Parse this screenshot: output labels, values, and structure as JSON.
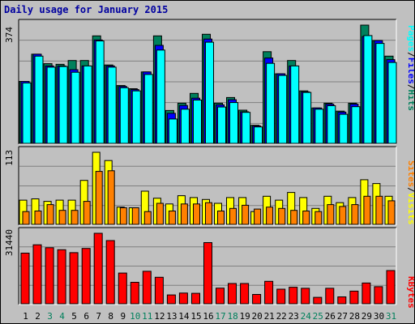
{
  "title": "Daily usage for January 2015",
  "colors": {
    "hits": "#00805c",
    "files": "#0000ff",
    "pages": "#00ffff",
    "visits": "#ffff00",
    "sites": "#ff8000",
    "kbytes": "#ff0000",
    "weekday": "#000000",
    "weekend": "#00805c",
    "panel_bg": "#c0c0c0",
    "grid": "#808080"
  },
  "side_labels": {
    "panel1": [
      "Pages",
      "/",
      "Files",
      "/",
      "Hits"
    ],
    "panel2": [
      "Sites",
      "/",
      "Visits"
    ],
    "panel3": [
      "KBytes"
    ]
  },
  "chart_data": [
    {
      "type": "bar",
      "panel": "hits-files-pages",
      "categories": [
        "1",
        "2",
        "3",
        "4",
        "5",
        "6",
        "7",
        "8",
        "9",
        "10",
        "11",
        "12",
        "13",
        "14",
        "15",
        "16",
        "17",
        "18",
        "19",
        "20",
        "21",
        "22",
        "23",
        "24",
        "25",
        "26",
        "27",
        "28",
        "29",
        "30",
        "31"
      ],
      "ymax_label": "374",
      "ylim": [
        0,
        374
      ],
      "series": [
        {
          "name": "Hits",
          "values": [
            196,
            282,
            252,
            250,
            262,
            262,
            340,
            248,
            183,
            173,
            226,
            340,
            104,
            127,
            158,
            345,
            127,
            145,
            105,
            57,
            290,
            220,
            262,
            166,
            112,
            127,
            102,
            127,
            374,
            325,
            276
          ]
        },
        {
          "name": "Files",
          "values": [
            196,
            282,
            245,
            245,
            233,
            245,
            327,
            245,
            180,
            170,
            226,
            310,
            95,
            120,
            143,
            330,
            122,
            138,
            100,
            55,
            270,
            220,
            245,
            163,
            112,
            124,
            99,
            124,
            338,
            325,
            265
          ]
        },
        {
          "name": "Pages",
          "values": [
            191,
            276,
            241,
            243,
            225,
            245,
            324,
            241,
            176,
            166,
            218,
            295,
            77,
            108,
            137,
            320,
            115,
            129,
            98,
            52,
            253,
            215,
            245,
            161,
            108,
            119,
            92,
            116,
            341,
            316,
            256
          ]
        }
      ]
    },
    {
      "type": "bar",
      "panel": "visits-sites",
      "categories": [
        "1",
        "2",
        "3",
        "4",
        "5",
        "6",
        "7",
        "8",
        "9",
        "10",
        "11",
        "12",
        "13",
        "14",
        "15",
        "16",
        "17",
        "18",
        "19",
        "20",
        "21",
        "22",
        "23",
        "24",
        "25",
        "26",
        "27",
        "28",
        "29",
        "30",
        "31"
      ],
      "ymax_label": "113",
      "ylim": [
        0,
        113
      ],
      "series": [
        {
          "name": "Visits",
          "values": [
            38,
            40,
            36,
            38,
            38,
            69,
            113,
            100,
            27,
            26,
            52,
            41,
            32,
            45,
            42,
            39,
            33,
            42,
            42,
            20,
            44,
            38,
            50,
            42,
            25,
            44,
            34,
            42,
            70,
            64,
            44
          ]
        },
        {
          "name": "Sites",
          "values": [
            20,
            21,
            31,
            22,
            22,
            36,
            83,
            84,
            26,
            26,
            20,
            33,
            21,
            32,
            32,
            34,
            21,
            25,
            30,
            24,
            27,
            25,
            22,
            21,
            20,
            31,
            28,
            31,
            44,
            44,
            37
          ]
        }
      ]
    },
    {
      "type": "bar",
      "panel": "kbytes",
      "categories": [
        "1",
        "2",
        "3",
        "4",
        "5",
        "6",
        "7",
        "8",
        "9",
        "10",
        "11",
        "12",
        "13",
        "14",
        "15",
        "16",
        "17",
        "18",
        "19",
        "20",
        "21",
        "22",
        "23",
        "24",
        "25",
        "26",
        "27",
        "28",
        "29",
        "30",
        "31"
      ],
      "ymax_label": "31440",
      "ylim": [
        0,
        31440
      ],
      "series": [
        {
          "name": "KBytes",
          "values": [
            22600,
            26300,
            25000,
            24100,
            22800,
            24700,
            31440,
            28200,
            13700,
            9560,
            14500,
            11800,
            3950,
            4780,
            4650,
            27300,
            6960,
            9040,
            9040,
            4140,
            10000,
            6490,
            7390,
            6910,
            2840,
            6910,
            3080,
            5640,
            9250,
            7640,
            14800
          ]
        }
      ]
    }
  ],
  "weekend_days": [
    3,
    4,
    10,
    11,
    17,
    18,
    24,
    25,
    31
  ]
}
